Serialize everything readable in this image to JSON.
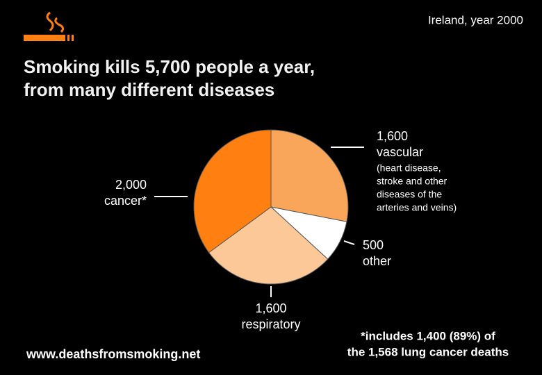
{
  "chart_data": {
    "type": "pie",
    "title": [
      "Smoking kills 5,700 people a year,",
      "from many different diseases"
    ],
    "subtitle": "Ireland, year 2000",
    "categories": [
      "vascular",
      "other",
      "respiratory",
      "cancer*"
    ],
    "values": [
      1600,
      500,
      1600,
      2000
    ],
    "value_labels": [
      "1,600",
      "500",
      "1,600",
      "2,000"
    ],
    "colors": [
      "#f9a55a",
      "#ffffff",
      "#fcc898",
      "#ff7f10"
    ],
    "annotation": [
      "(heart disease,",
      "stroke and other",
      "diseases of the",
      "arteries and veins)"
    ],
    "footnote": [
      "*includes 1,400 (89%) of",
      "the 1,568 lung cancer deaths"
    ],
    "source": "www.deathsfromsmoking.net"
  }
}
